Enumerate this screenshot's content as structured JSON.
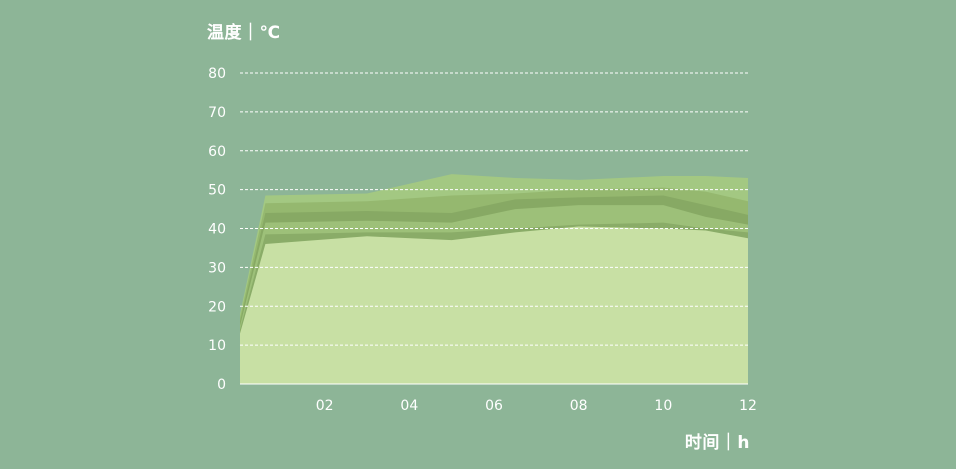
{
  "chart_data": {
    "type": "area",
    "title": "",
    "ylabel": "温度｜℃",
    "xlabel": "时间｜h",
    "ylim": [
      0,
      80
    ],
    "xlim": [
      0,
      12
    ],
    "yticks": [
      0,
      10,
      20,
      30,
      40,
      50,
      60,
      70,
      80
    ],
    "xticks": [
      "02",
      "04",
      "06",
      "08",
      "10",
      "12"
    ],
    "grid": true,
    "x": [
      0,
      0.6,
      3,
      5,
      6.5,
      8,
      10,
      11,
      12
    ],
    "series": [
      {
        "color": "#a3c882",
        "values": [
          18,
          48.5,
          49,
          54,
          53,
          52.5,
          53.5,
          53.5,
          53
        ]
      },
      {
        "color": "#95b86f",
        "values": [
          17,
          46.5,
          47,
          48.5,
          49,
          50,
          50.5,
          49.5,
          47
        ]
      },
      {
        "color": "#87a964",
        "values": [
          16,
          44,
          44.5,
          44,
          47.5,
          48,
          48.5,
          46,
          43.5
        ]
      },
      {
        "color": "#9dc079",
        "values": [
          15,
          41.5,
          42,
          41.5,
          45,
          46,
          46,
          43,
          41
        ]
      },
      {
        "color": "#8aac68",
        "values": [
          14,
          38.5,
          39,
          39,
          40,
          41,
          41.5,
          40,
          39
        ]
      },
      {
        "color": "#c8e0a4",
        "values": [
          13,
          36,
          38,
          37,
          39,
          40.5,
          40,
          39.5,
          37.5
        ]
      }
    ]
  }
}
